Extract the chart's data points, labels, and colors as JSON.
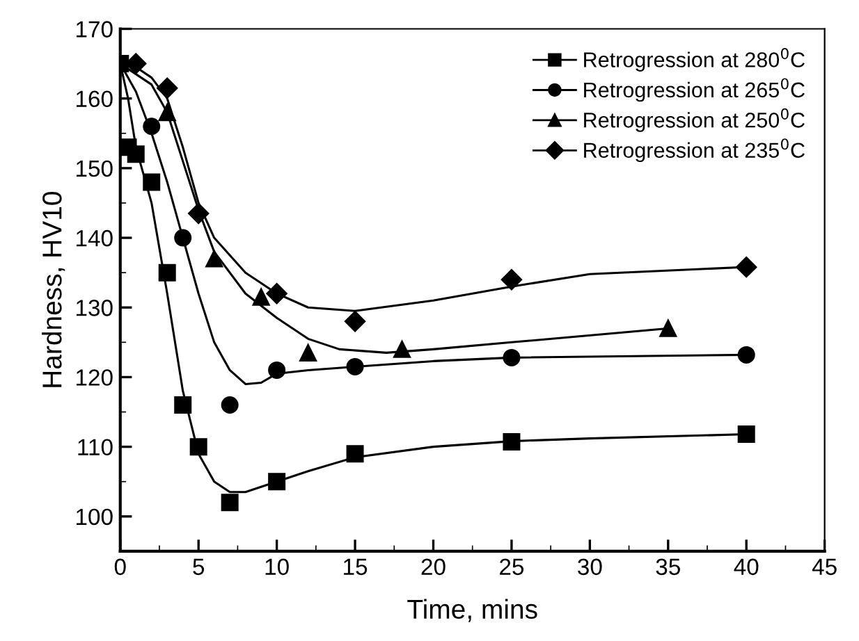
{
  "chart_data": {
    "type": "scatter",
    "xlabel": "Time, mins",
    "ylabel": "Hardness, HV10",
    "xlim": [
      0,
      45
    ],
    "xticks": [
      0,
      5,
      10,
      15,
      20,
      25,
      30,
      35,
      40,
      45
    ],
    "ylim": [
      95,
      170
    ],
    "yticks": [
      100,
      110,
      120,
      130,
      140,
      150,
      160,
      170
    ],
    "legend": "top right",
    "grid": false,
    "series": [
      {
        "name": "Retrogression at 280$^{0}$C",
        "color": "#000000",
        "marker": "square",
        "x": [
          0,
          0.5,
          1,
          2,
          3,
          4,
          5,
          7,
          10,
          15,
          25,
          40
        ],
        "values": [
          165,
          153,
          152,
          148,
          135,
          116,
          110,
          102,
          105,
          109,
          110.7,
          111.8
        ]
      },
      {
        "name": "Retrogression at 265$^{0}$C",
        "color": "#000000",
        "marker": "circle",
        "x": [
          2,
          4,
          7,
          10,
          15,
          25,
          40
        ],
        "values": [
          156,
          140,
          116,
          121,
          121.5,
          122.8,
          123.2
        ]
      },
      {
        "name": "Retrogression at 250$^{0}$C",
        "color": "#000000",
        "marker": "triangle",
        "x": [
          3,
          6,
          9,
          12,
          18,
          35
        ],
        "values": [
          158,
          137,
          131.5,
          123.5,
          124,
          127
        ]
      },
      {
        "name": "Retrogression at 235$^{0}$C",
        "color": "#000000",
        "marker": "diamond",
        "x": [
          1,
          3,
          5,
          10,
          15,
          25,
          40
        ],
        "values": [
          165,
          161.5,
          143.5,
          132,
          128,
          134,
          135.8
        ]
      },
      {
        "type": "line",
        "color": "#000000",
        "x": [
          0,
          0.5,
          1,
          2,
          3,
          4,
          5,
          6,
          7,
          8,
          10,
          12,
          15,
          20,
          25,
          30,
          40
        ],
        "values": [
          165,
          160,
          153,
          145,
          132,
          118,
          109,
          105,
          103.5,
          103.5,
          105,
          106.5,
          108.5,
          110,
          110.8,
          111.2,
          111.8
        ]
      },
      {
        "type": "line",
        "color": "#000000",
        "x": [
          0,
          1,
          2,
          3,
          4,
          5,
          6,
          7,
          8,
          9,
          10,
          12,
          15,
          20,
          25,
          40
        ],
        "values": [
          165,
          161,
          155,
          148,
          140,
          132,
          125,
          121,
          119,
          119.2,
          120.5,
          121,
          121.5,
          122.3,
          122.8,
          123.2
        ]
      },
      {
        "type": "line",
        "color": "#000000",
        "x": [
          0,
          2,
          3,
          4,
          5,
          6,
          8,
          10,
          12,
          14,
          17,
          20,
          25,
          35
        ],
        "values": [
          165,
          162,
          158,
          151,
          144,
          138,
          132,
          128.5,
          125.5,
          124,
          123.5,
          124,
          125,
          127
        ]
      },
      {
        "type": "line",
        "color": "#000000",
        "x": [
          0,
          1,
          2,
          3,
          4,
          5,
          6,
          8,
          10,
          12,
          15,
          20,
          25,
          30,
          40
        ],
        "values": [
          165,
          164.5,
          163,
          160,
          153,
          145,
          140,
          135,
          132,
          130,
          129.5,
          131,
          133,
          134.8,
          135.8
        ]
      }
    ]
  }
}
